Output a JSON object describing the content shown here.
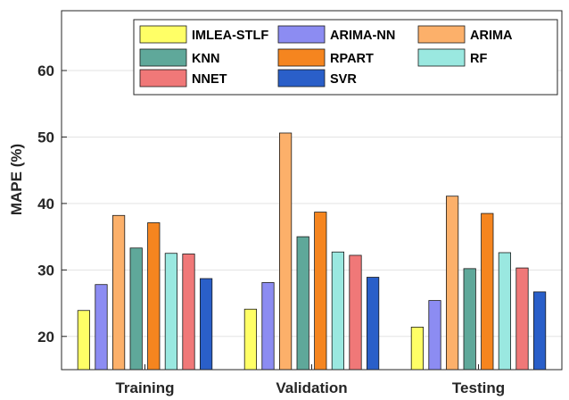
{
  "chart_data": {
    "type": "bar",
    "title": "",
    "xlabel": "",
    "ylabel": "MAPE (%)",
    "ylim": [
      15,
      69
    ],
    "yticks": [
      20,
      30,
      40,
      50,
      60
    ],
    "ytick_labels": [
      "20",
      "30",
      "40",
      "50",
      "60"
    ],
    "grid": true,
    "legend": {
      "placement": "top-right",
      "columns": 3
    },
    "categories": [
      "Training",
      "Validation",
      "Testing"
    ],
    "series": [
      {
        "name": "IMLEA-STLF",
        "color": "#ffff66",
        "values": [
          23.9,
          24.1,
          21.4
        ]
      },
      {
        "name": "ARIMA-NN",
        "color": "#8c8cf2",
        "values": [
          27.8,
          28.1,
          25.4
        ]
      },
      {
        "name": "ARIMA",
        "color": "#fcb06a",
        "values": [
          38.2,
          50.6,
          41.1
        ]
      },
      {
        "name": "KNN",
        "color": "#5fa89a",
        "values": [
          33.3,
          35.0,
          30.2
        ]
      },
      {
        "name": "RPART",
        "color": "#f5851f",
        "values": [
          37.1,
          38.7,
          38.5
        ]
      },
      {
        "name": "RF",
        "color": "#9ae8e0",
        "values": [
          32.5,
          32.7,
          32.6
        ]
      },
      {
        "name": "NNET",
        "color": "#f07878",
        "values": [
          32.4,
          32.2,
          30.3
        ]
      },
      {
        "name": "SVR",
        "color": "#2a5fc9",
        "values": [
          28.7,
          28.9,
          26.7
        ]
      }
    ]
  }
}
